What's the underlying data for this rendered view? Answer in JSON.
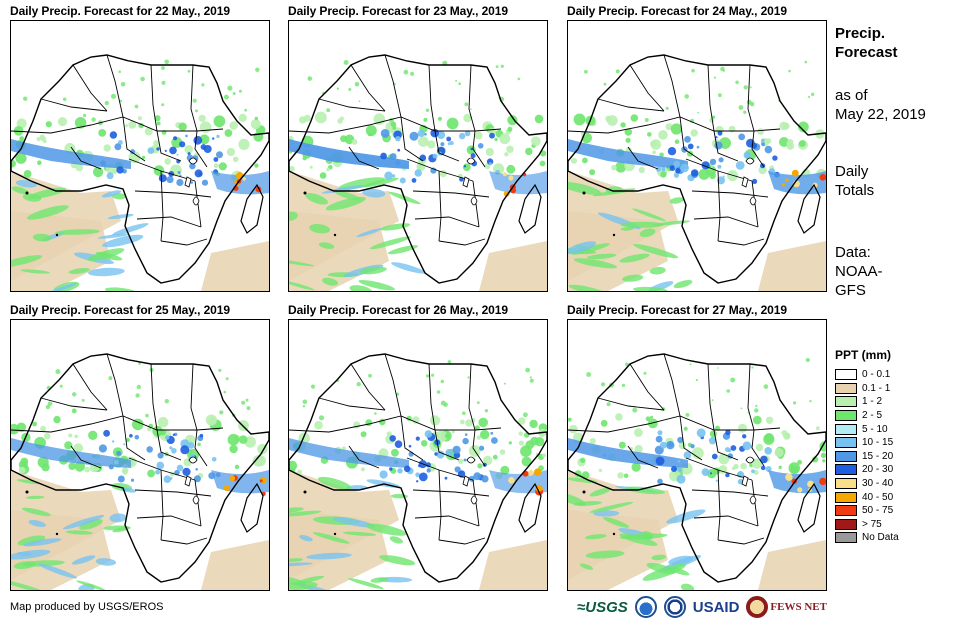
{
  "panels": [
    {
      "title": "Daily Precip. Forecast for 22 May., 2019",
      "rain_intensity": 1.0,
      "eastern_rain": 0.9
    },
    {
      "title": "Daily Precip. Forecast for 23 May., 2019",
      "rain_intensity": 1.1,
      "eastern_rain": 0.8
    },
    {
      "title": "Daily Precip. Forecast for 24 May., 2019",
      "rain_intensity": 1.0,
      "eastern_rain": 1.0
    },
    {
      "title": "Daily Precip. Forecast for 25 May., 2019",
      "rain_intensity": 0.9,
      "eastern_rain": 0.9
    },
    {
      "title": "Daily Precip. Forecast for 26 May., 2019",
      "rain_intensity": 0.9,
      "eastern_rain": 0.8
    },
    {
      "title": "Daily Precip. Forecast for 27 May., 2019",
      "rain_intensity": 1.0,
      "eastern_rain": 1.0
    }
  ],
  "sidebar": {
    "title_line1": "Precip.",
    "title_line2": "Forecast",
    "asof_line1": "as of",
    "asof_line2": "May 22, 2019",
    "totals_line1": "Daily",
    "totals_line2": "Totals",
    "data_line1": "Data:",
    "data_line2": "NOAA-",
    "data_line3": "GFS"
  },
  "legend": {
    "title": "PPT (mm)",
    "items": [
      {
        "label": "0 - 0.1",
        "color": "#ffffff"
      },
      {
        "label": "0.1 - 1",
        "color": "#e8d2b0"
      },
      {
        "label": "1 - 2",
        "color": "#b8f0b0"
      },
      {
        "label": "2 - 5",
        "color": "#6ee66e"
      },
      {
        "label": "5 - 10",
        "color": "#b4ecf5"
      },
      {
        "label": "10 - 15",
        "color": "#78c2f0"
      },
      {
        "label": "15 - 20",
        "color": "#4f98e6"
      },
      {
        "label": "20 - 30",
        "color": "#1e5ee0"
      },
      {
        "label": "30 - 40",
        "color": "#f8e08a"
      },
      {
        "label": "40 - 50",
        "color": "#f5a800"
      },
      {
        "label": "50 - 75",
        "color": "#f03a10"
      },
      {
        "label": "> 75",
        "color": "#a01818"
      },
      {
        "label": "No Data",
        "color": "#999999"
      }
    ]
  },
  "footer": {
    "credit": "Map produced by USGS/EROS"
  },
  "logos": {
    "usgs": "≈USGS",
    "usaid": "USAID",
    "fews": "FEWS NET"
  }
}
